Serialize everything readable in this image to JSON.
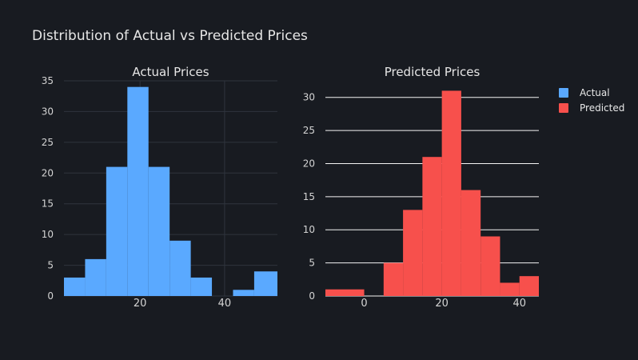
{
  "colors": {
    "background": "#181b21",
    "grid": "#2f343d",
    "actual": "#5aa9ff",
    "predicted": "#f7504c",
    "text": "#e6e6e6",
    "subtext": "#d4d4d4",
    "white_grid": "#f4f4f4"
  },
  "chart_data": {
    "title": "Distribution of Actual vs Predicted Prices",
    "legend": {
      "placement": "right",
      "items": [
        {
          "label": "Actual",
          "color": "#5aa9ff"
        },
        {
          "label": "Predicted",
          "color": "#f7504c"
        }
      ]
    },
    "charts": [
      {
        "type": "bar",
        "title": "Actual Prices",
        "series": "Actual",
        "xlim": [
          2,
          52.5
        ],
        "ylim": [
          0,
          35
        ],
        "xticks": [
          20,
          40
        ],
        "yticks": [
          0,
          5,
          10,
          15,
          20,
          25,
          30,
          35
        ],
        "grid": true,
        "bins": [
          {
            "x0": 2,
            "x1": 7,
            "count": 3
          },
          {
            "x0": 7,
            "x1": 12,
            "count": 6
          },
          {
            "x0": 12,
            "x1": 17,
            "count": 21
          },
          {
            "x0": 17,
            "x1": 22,
            "count": 34
          },
          {
            "x0": 22,
            "x1": 27,
            "count": 21
          },
          {
            "x0": 27,
            "x1": 32,
            "count": 9
          },
          {
            "x0": 32,
            "x1": 37,
            "count": 3
          },
          {
            "x0": 37,
            "x1": 42,
            "count": 0
          },
          {
            "x0": 42,
            "x1": 47,
            "count": 1
          },
          {
            "x0": 47,
            "x1": 52.5,
            "count": 4
          }
        ]
      },
      {
        "type": "bar",
        "title": "Predicted Prices",
        "series": "Predicted",
        "xlim": [
          -10,
          45
        ],
        "ylim": [
          0,
          32.5
        ],
        "xticks": [
          0,
          20,
          40
        ],
        "yticks": [
          0,
          5,
          10,
          15,
          20,
          25,
          30
        ],
        "grid": true,
        "bins": [
          {
            "x0": -10,
            "x1": 0,
            "count": 1
          },
          {
            "x0": 5,
            "x1": 10,
            "count": 5
          },
          {
            "x0": 10,
            "x1": 15,
            "count": 13
          },
          {
            "x0": 15,
            "x1": 20,
            "count": 21
          },
          {
            "x0": 20,
            "x1": 25,
            "count": 31
          },
          {
            "x0": 25,
            "x1": 30,
            "count": 16
          },
          {
            "x0": 30,
            "x1": 35,
            "count": 9
          },
          {
            "x0": 35,
            "x1": 40,
            "count": 2
          },
          {
            "x0": 40,
            "x1": 45,
            "count": 3
          }
        ]
      }
    ]
  }
}
